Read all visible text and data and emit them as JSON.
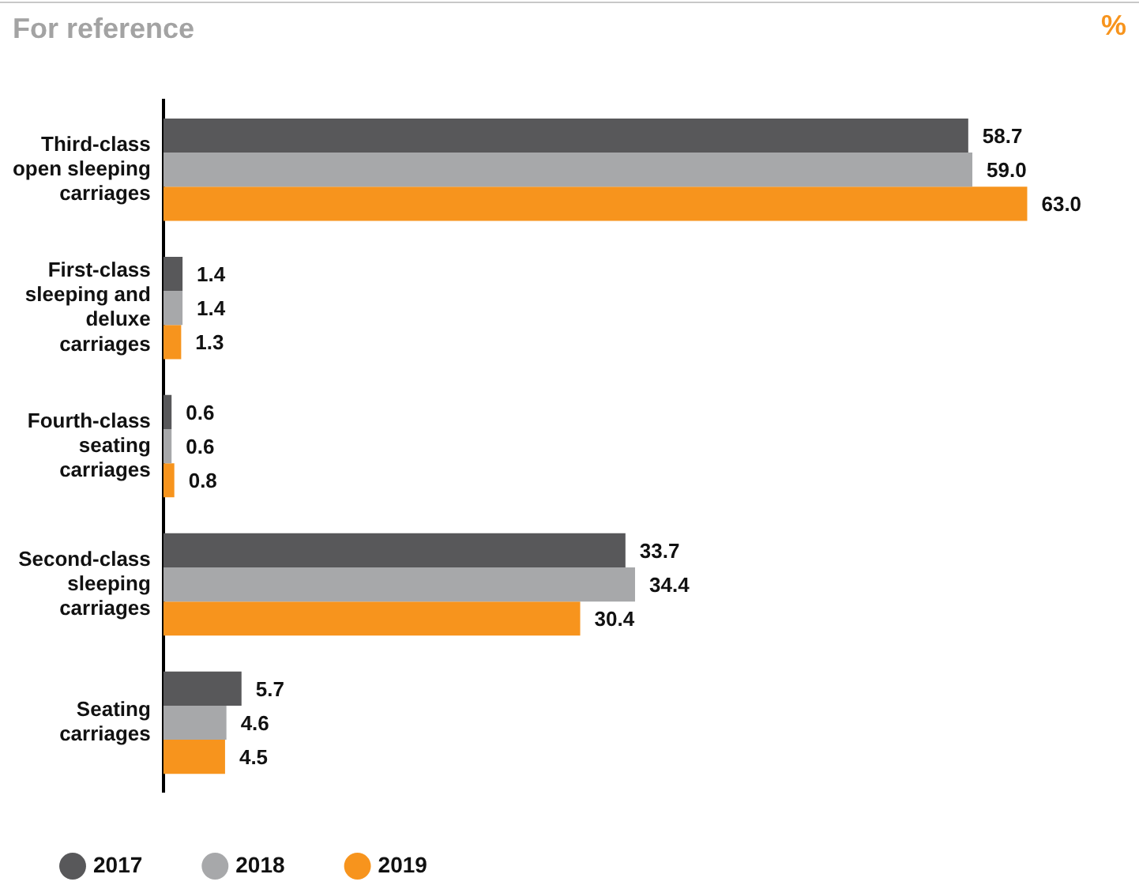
{
  "chart_data": {
    "type": "bar",
    "orientation": "horizontal",
    "title": "For reference",
    "annotations": [
      "%"
    ],
    "categories": [
      "Third-class open sleeping carriages",
      "First-class sleeping and deluxe carriages",
      "Fourth-class seating carriages",
      "Second-class sleeping carriages",
      "Seating carriages"
    ],
    "series": [
      {
        "name": "2017",
        "color": "#58585a",
        "values": [
          58.7,
          1.4,
          0.6,
          33.7,
          5.7
        ],
        "value_labels": [
          "58.7",
          "1.4",
          "0.6",
          "33.7",
          "5.7"
        ]
      },
      {
        "name": "2018",
        "color": "#a7a8aa",
        "values": [
          59.0,
          1.4,
          0.6,
          34.4,
          4.6
        ],
        "value_labels": [
          "59.0",
          "1.4",
          "0.6",
          "34.4",
          "4.6"
        ]
      },
      {
        "name": "2019",
        "color": "#f7941d",
        "values": [
          63.0,
          1.3,
          0.8,
          30.4,
          4.5
        ],
        "value_labels": [
          "63.0",
          "1.3",
          "0.8",
          "30.4",
          "4.5"
        ]
      }
    ],
    "legend": "bottom"
  }
}
